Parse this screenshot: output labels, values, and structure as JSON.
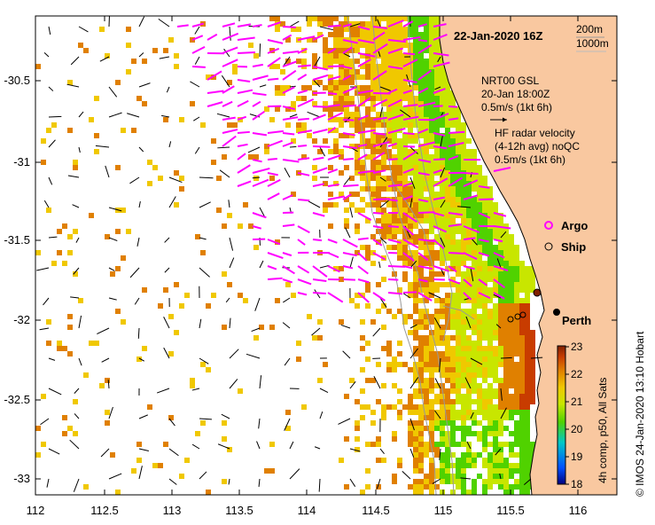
{
  "map": {
    "date_title": "22-Jan-2020 16Z",
    "contours": [
      "200m",
      "1000m"
    ],
    "gsl_label": "NRT00 GSL",
    "gsl_time": "20-Jan 18:00Z",
    "gsl_scale": "0.5m/s (1kt 6h)",
    "hf_label_1": "HF radar velocity",
    "hf_label_2": "(4-12h avg) noQC",
    "hf_scale": "0.5m/s (1kt 6h)",
    "legend_argo": "Argo",
    "legend_ship": "Ship",
    "city_label": "Perth",
    "colorbar_title": "4h comp, p50, All Sats",
    "copyright": "© IMOS 24-Jan-2020 13:10 Hobart",
    "x_ticks": [
      "112",
      "112.5",
      "113",
      "113.5",
      "114",
      "114.5",
      "115",
      "115.5",
      "116"
    ],
    "y_ticks": [
      "-30.5",
      "-31",
      "-31.5",
      "-32",
      "-32.5",
      "-33"
    ],
    "colorbar_ticks": [
      "23",
      "22",
      "21",
      "20",
      "19",
      "18"
    ],
    "colors": {
      "land": "#F9C8A0",
      "hf_arrows": "#FF00FF",
      "gsl_arrows": "#000000",
      "colorbar": [
        "#00007F",
        "#0050FF",
        "#00C8C8",
        "#50D200",
        "#C8E600",
        "#F0C800",
        "#E08000",
        "#C83C00",
        "#802000"
      ]
    }
  }
}
